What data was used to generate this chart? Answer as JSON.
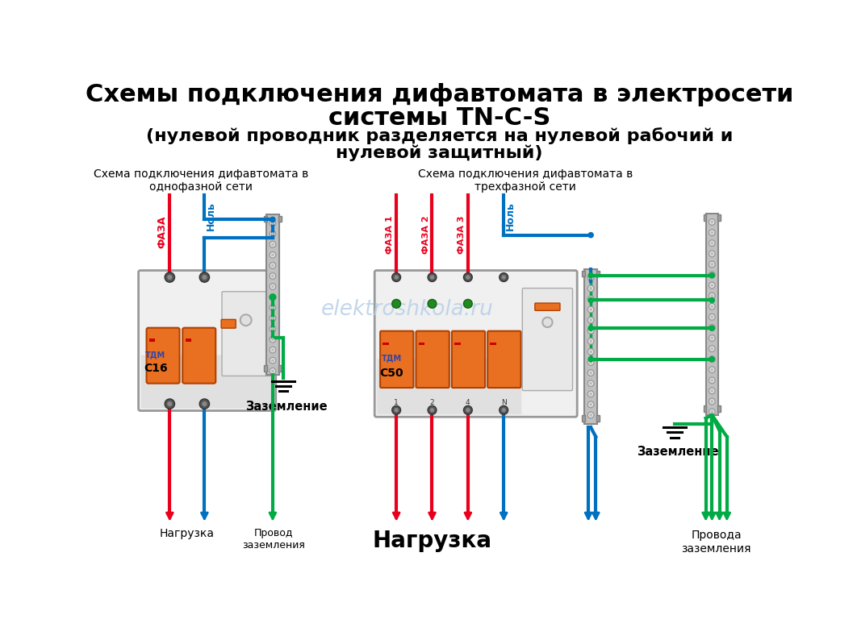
{
  "bg_color": "#ffffff",
  "title_line1": "Схемы подключения дифавтомата в электросети",
  "title_line2": "системы TN-C-S",
  "title_line3": "(нулевой проводник разделяется на нулевой рабочий и",
  "title_line4": "нулевой защитный)",
  "subtitle_left": "Схема подключения дифавтомата в\nоднофазной сети",
  "subtitle_right": "Схема подключения дифавтомата в\nтрехфазной сети",
  "watermark": "elektroshkola.ru",
  "label_faza": "ФАЗА",
  "label_nol": "Ноль",
  "label_faza1": "ФАЗА 1",
  "label_faza2": "ФАЗА 2",
  "label_faza3": "ФАЗА 3",
  "label_nol2": "Ноль",
  "label_nagruzka_left": "Нагрузка",
  "label_provod_left": "Провод\nзаземления",
  "label_zazemlenie_left": "Заземление",
  "label_nagruzka_right": "Нагрузка",
  "label_provod_right": "Провода\nзаземления",
  "label_zazemlenie_right": "Заземление",
  "color_red": "#e8001c",
  "color_blue": "#0070c0",
  "color_green": "#00aa44",
  "title_fontsize": 22,
  "subtitle_fontsize": 11,
  "label_fontsize": 10,
  "wire_lw": 3.0
}
